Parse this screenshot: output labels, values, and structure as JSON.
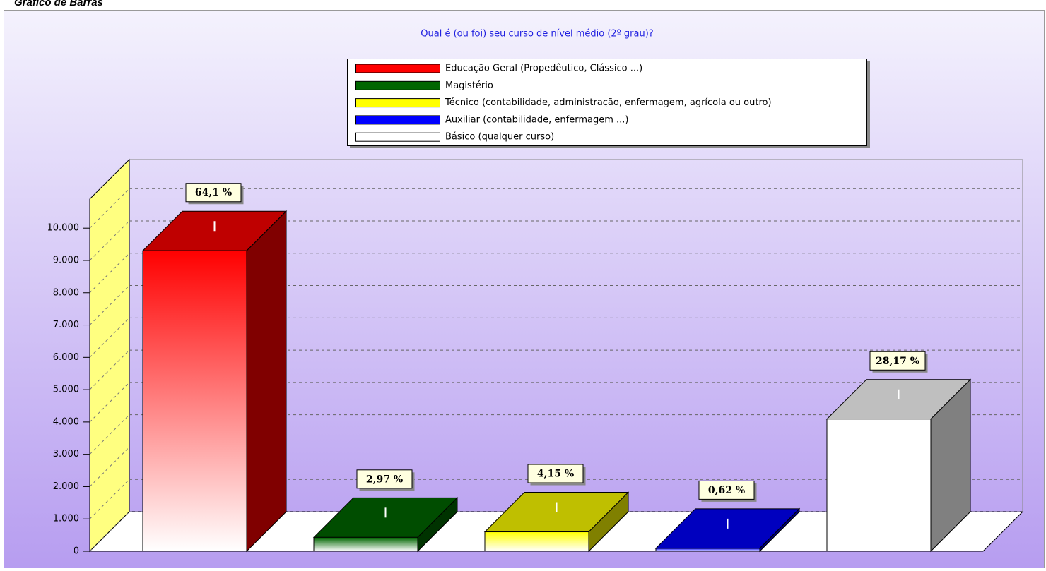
{
  "page_title": "Gráfico de Barras",
  "chart_data": {
    "type": "bar3d",
    "title": "Qual é (ou foi) seu curso de nível médio (2º grau)?",
    "categories": [
      "Educação Geral (Propedêutico, Clássico ...)",
      "Magistério",
      "Técnico (contabilidade, administração, enfermagem, agrícola ou outro)",
      "Auxiliar (contabilidade, enfermagem ...)",
      "Básico (qualquer curso)"
    ],
    "colors": [
      "#ff0000",
      "#006600",
      "#ffff00",
      "#0000ff",
      "#ffffff"
    ],
    "values": [
      9300,
      430,
      600,
      90,
      4090
    ],
    "value_labels": [
      "64,1 %",
      "2,97 %",
      "4,15 %",
      "0,62 %",
      "28,17 %"
    ],
    "ylim": [
      0,
      10900
    ],
    "yticks": [
      0,
      {
        "value": 1000,
        "label": "1.000"
      },
      {
        "value": 2000,
        "label": "2.000"
      },
      {
        "value": 3000,
        "label": "3.000"
      },
      {
        "value": 4000,
        "label": "4.000"
      },
      {
        "value": 5000,
        "label": "5.000"
      },
      {
        "value": 6000,
        "label": "6.000"
      },
      {
        "value": 7000,
        "label": "7.000"
      },
      {
        "value": 8000,
        "label": "8.000"
      },
      {
        "value": 9000,
        "label": "9.000"
      },
      {
        "value": 10000,
        "label": "10.000"
      }
    ],
    "grid": true
  }
}
